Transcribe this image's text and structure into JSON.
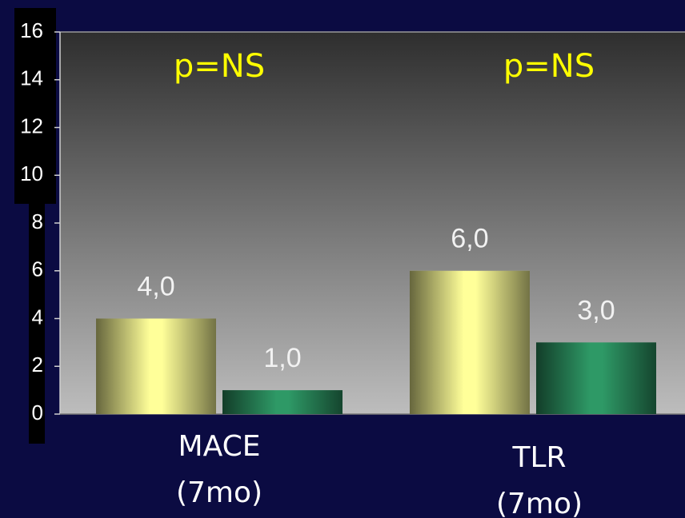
{
  "chart_data": {
    "type": "bar",
    "categories": [
      [
        "MACE",
        "(7mo)"
      ],
      [
        "TLR",
        "(7mo)"
      ]
    ],
    "series": [
      {
        "color": "#ffff99",
        "values": [
          4,
          6
        ],
        "value_labels": [
          "4,0",
          "6,0"
        ]
      },
      {
        "color": "#2e9966",
        "values": [
          1,
          3
        ],
        "value_labels": [
          "1,0",
          "3,0"
        ]
      }
    ],
    "annotations": [
      "p=NS",
      "p=NS"
    ],
    "ylim": [
      0,
      16
    ],
    "yticks": [
      0,
      2,
      4,
      6,
      8,
      10,
      12,
      14,
      16
    ],
    "grid": false
  }
}
